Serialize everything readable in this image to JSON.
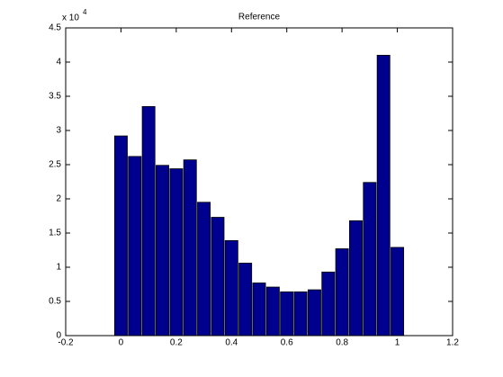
{
  "chart_data": {
    "type": "bar",
    "title": "Reference",
    "y_multiplier": "x 10",
    "y_multiplier_exponent": "4",
    "x": [
      0,
      0.05,
      0.1,
      0.15,
      0.2,
      0.25,
      0.3,
      0.35,
      0.4,
      0.45,
      0.5,
      0.55,
      0.6,
      0.65,
      0.7,
      0.75,
      0.8,
      0.85,
      0.9,
      0.95,
      1
    ],
    "values": [
      2.92,
      2.62,
      3.35,
      2.49,
      2.44,
      2.57,
      1.95,
      1.73,
      1.39,
      1.06,
      0.77,
      0.71,
      0.64,
      0.64,
      0.67,
      0.93,
      1.27,
      1.68,
      2.24,
      4.1,
      1.29
    ],
    "color": "#00008f",
    "xlim": [
      -0.2,
      1.2
    ],
    "xticks": [
      -0.2,
      0,
      0.2,
      0.4,
      0.6,
      0.8,
      1,
      1.2
    ],
    "ylim": [
      0,
      4.5
    ],
    "yticks": [
      0,
      0.5,
      1,
      1.5,
      2,
      2.5,
      3,
      3.5,
      4,
      4.5
    ],
    "grid": false
  }
}
